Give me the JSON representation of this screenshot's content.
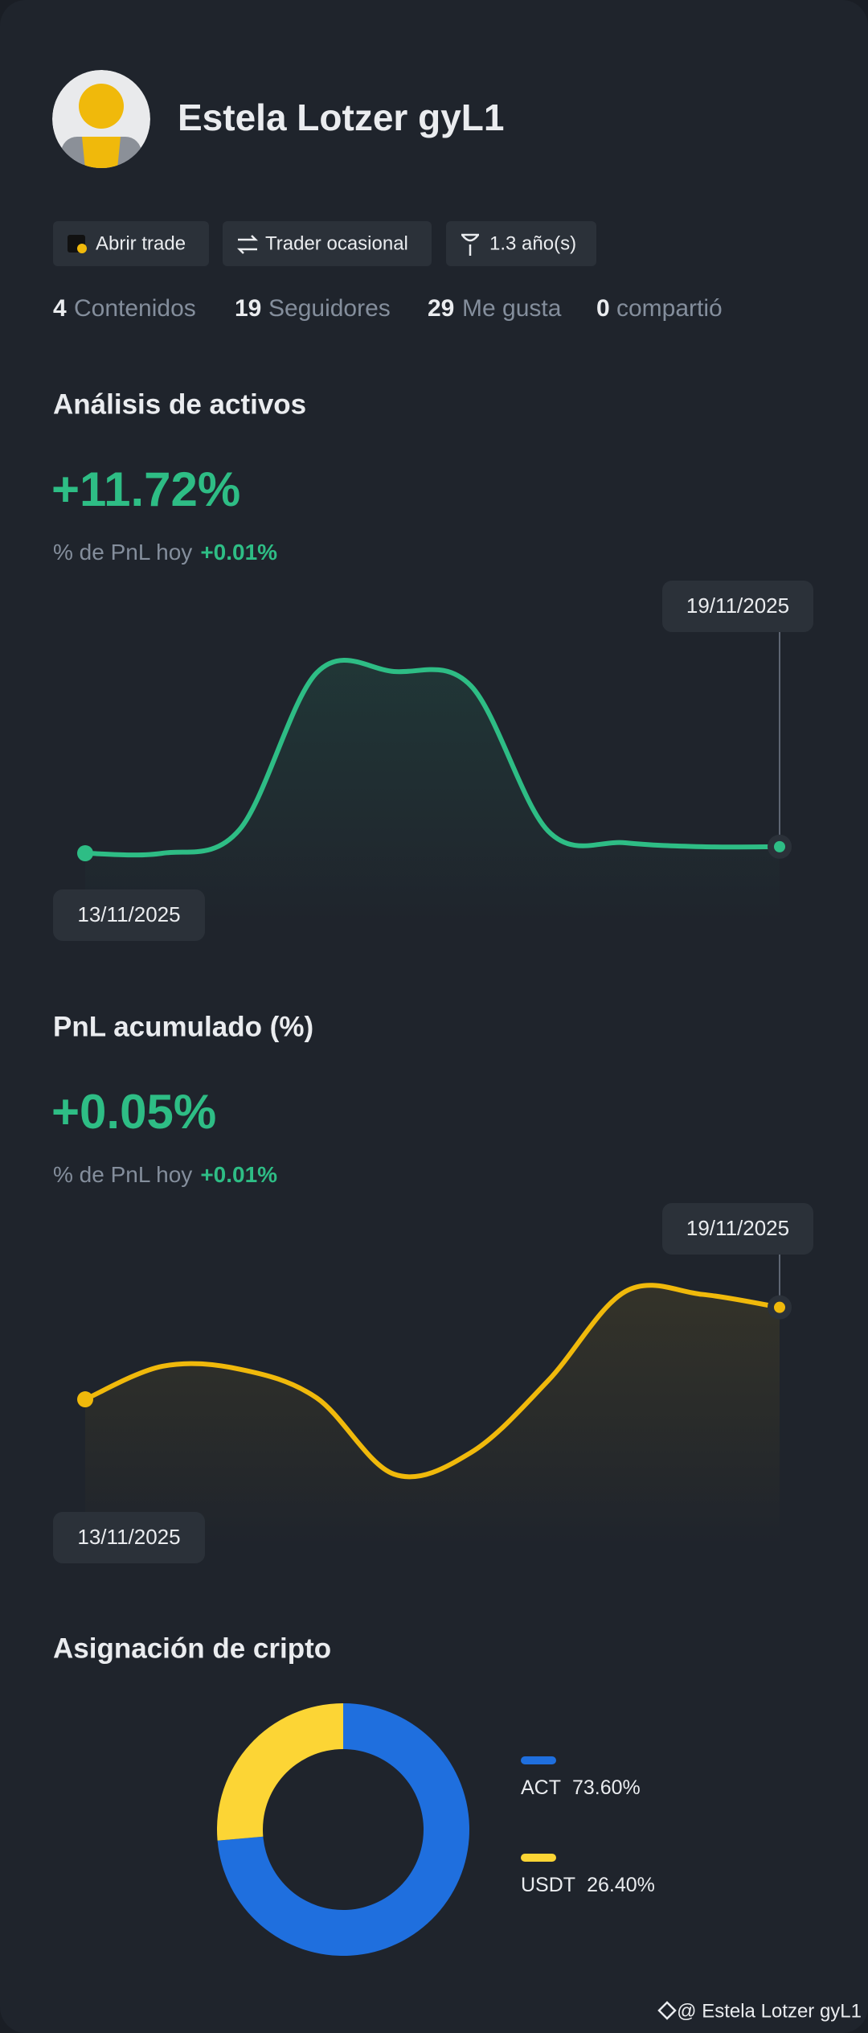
{
  "profile": {
    "name": "Estela Lotzer gyL1",
    "badges": [
      "Abrir trade",
      "Trader ocasional",
      "1.3 año(s)"
    ],
    "stats": [
      {
        "count": 4,
        "label": "Contenidos"
      },
      {
        "count": 19,
        "label": "Seguidores"
      },
      {
        "count": 29,
        "label": "Me gusta"
      },
      {
        "count": 0,
        "label": "compartió"
      }
    ]
  },
  "chart_data": [
    {
      "type": "line",
      "title": "Análisis de activos",
      "headline": "+11.72%",
      "subtitle": "% de PnL hoy",
      "subtitle_value": "+0.01%",
      "categories": [
        "13/11/2025",
        null,
        null,
        null,
        null,
        null,
        null,
        null,
        null,
        "19/11/2025"
      ],
      "values": [
        42,
        42,
        60,
        180,
        181,
        170,
        59,
        50,
        47,
        47
      ],
      "color": "#2ebd85"
    },
    {
      "type": "line",
      "title": "PnL acumulado (%)",
      "headline": "+0.05%",
      "subtitle": "% de PnL hoy",
      "subtitle_value": "+0.01%",
      "categories": [
        "13/11/2025",
        null,
        null,
        null,
        null,
        null,
        null,
        null,
        null,
        "19/11/2025"
      ],
      "values": [
        77,
        100,
        98,
        78,
        25,
        40,
        90,
        152,
        150,
        141
      ],
      "color": "#f0b90b"
    },
    {
      "type": "pie",
      "title": "Asignación de cripto",
      "categories": [
        "ACT",
        "USDT"
      ],
      "values": [
        73.6,
        26.4
      ],
      "value_labels": [
        "73.60%",
        "26.40%"
      ],
      "colors": [
        "#1f6fde",
        "#fcd535"
      ]
    }
  ],
  "footer": "@ Estela Lotzer gyL1"
}
